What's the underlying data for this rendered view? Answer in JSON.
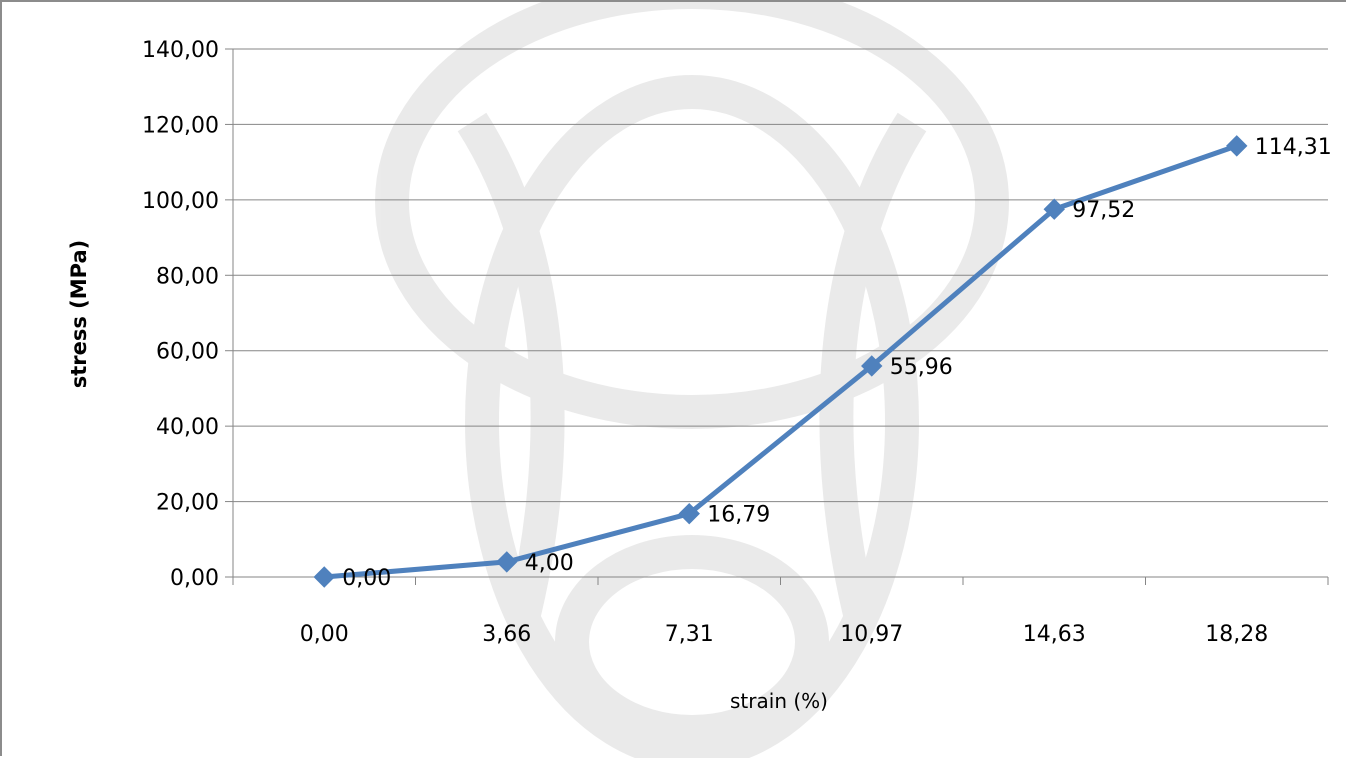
{
  "chart_data": {
    "type": "line",
    "categories": [
      "0,00",
      "3,66",
      "7,31",
      "10,97",
      "14,63",
      "18,28"
    ],
    "series": [
      {
        "values": [
          0.0,
          4.0,
          16.79,
          55.96,
          97.52,
          114.31
        ]
      }
    ],
    "data_labels": [
      "0,00",
      "4,00",
      "16,79",
      "55,96",
      "97,52",
      "114,31"
    ],
    "y_ticks": [
      "0,00",
      "20,00",
      "40,00",
      "60,00",
      "80,00",
      "100,00",
      "120,00",
      "140,00"
    ],
    "ylim": [
      0,
      140
    ],
    "xlabel": "strain (%)",
    "ylabel": "stress (MPa)",
    "title": "",
    "grid": "horizontal",
    "legend": "none",
    "line_color": "#4f81bd",
    "grid_color": "#868686",
    "text_color": "#000000"
  }
}
